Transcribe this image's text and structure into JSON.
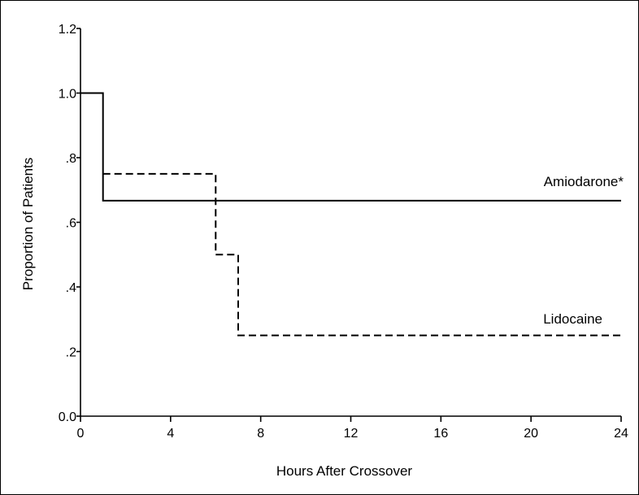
{
  "chart_data": {
    "type": "line",
    "title": "",
    "xlabel": "Hours After Crossover",
    "ylabel": "Proportion of Patients",
    "xlim": [
      0,
      24
    ],
    "ylim": [
      0,
      1.2
    ],
    "x_ticks": [
      0,
      4,
      8,
      12,
      16,
      20,
      24
    ],
    "x_tick_labels": [
      "0",
      "4",
      "8",
      "12",
      "16",
      "20",
      "24"
    ],
    "y_ticks": [
      0,
      0.2,
      0.4,
      0.6,
      0.8,
      1.0,
      1.2
    ],
    "y_tick_labels": [
      "0.0",
      ".2",
      ".4",
      ".6",
      ".8",
      "1.0",
      "1.2"
    ],
    "grid": false,
    "series": [
      {
        "name": "Amiodarone*",
        "style": "solid",
        "color": "#000000",
        "step_points": [
          [
            0,
            1.0
          ],
          [
            1,
            1.0
          ],
          [
            1,
            0.667
          ],
          [
            24,
            0.667
          ]
        ]
      },
      {
        "name": "Lidocaine",
        "style": "dashed",
        "color": "#000000",
        "step_points": [
          [
            1,
            0.75
          ],
          [
            6,
            0.75
          ],
          [
            6,
            0.5
          ],
          [
            7,
            0.5
          ],
          [
            7,
            0.25
          ],
          [
            24,
            0.25
          ]
        ]
      }
    ]
  }
}
